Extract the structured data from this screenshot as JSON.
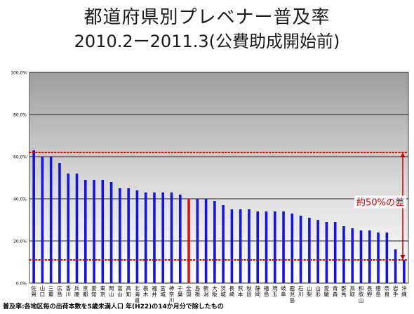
{
  "chart_data": {
    "type": "bar",
    "title_line1": "都道府県別プレベナー普及率",
    "title_line2": "2010.2ー2011.3(公費助成開始前)",
    "ylim": [
      0,
      100
    ],
    "yticks": [
      "0.0%",
      "20.0%",
      "40.0%",
      "60.0%",
      "80.0%",
      "100.0%"
    ],
    "grid": true,
    "categories": [
      "佐賀",
      "山口",
      "三重",
      "広島",
      "香川",
      "兵庫",
      "京都",
      "愛知",
      "東京",
      "岡山",
      "富山",
      "高知",
      "北海道",
      "栃木",
      "福井",
      "宮城",
      "神奈川",
      "千葉",
      "全国",
      "島根",
      "新潟",
      "大阪",
      "茨城",
      "長崎",
      "熊本",
      "秋田",
      "静岡",
      "福島",
      "埼玉",
      "岐阜",
      "鹿児島",
      "石川",
      "山梨",
      "山形",
      "愛媛",
      "青森",
      "群馬",
      "鳥取",
      "和歌山",
      "長野",
      "徳島",
      "奈良",
      "岩手",
      "沖縄"
    ],
    "series": [
      {
        "values": [
          63,
          60,
          60,
          57,
          52,
          52,
          49,
          49,
          49,
          48,
          45,
          45,
          44,
          43,
          43,
          43,
          43,
          42,
          40,
          40,
          40,
          39,
          37,
          35,
          35,
          35,
          34,
          34,
          34,
          34,
          33,
          32,
          31,
          30,
          29,
          29,
          27,
          26,
          25,
          25,
          24,
          24,
          16,
          11
        ],
        "color": "#1414e0",
        "highlight_index": 18,
        "highlight_color": "#e01010"
      }
    ],
    "reference_lines": [
      {
        "value": 62,
        "color": "#cc0000",
        "style": "dotted"
      },
      {
        "value": 11,
        "color": "#cc0000",
        "style": "dotted"
      }
    ],
    "annotation": "約50%の差",
    "annotation_color": "#cc0000"
  },
  "footnote": "普及率:各地区毎の出荷本数を5歳未満人口 年(H22)の14か月分で除したもの"
}
